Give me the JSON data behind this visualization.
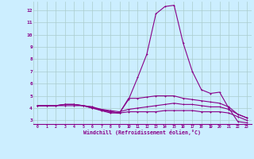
{
  "xlabel": "Windchill (Refroidissement éolien,°C)",
  "background_color": "#cceeff",
  "grid_color": "#aacccc",
  "line_color": "#880088",
  "xlim": [
    -0.5,
    23.5
  ],
  "ylim": [
    2.7,
    12.7
  ],
  "xtick_labels": [
    "0",
    "1",
    "2",
    "3",
    "4",
    "5",
    "6",
    "7",
    "8",
    "9",
    "10",
    "11",
    "12",
    "13",
    "14",
    "15",
    "16",
    "17",
    "18",
    "19",
    "20",
    "21",
    "22",
    "23"
  ],
  "ytick_labels": [
    "3",
    "4",
    "5",
    "6",
    "7",
    "8",
    "9",
    "10",
    "11",
    "12"
  ],
  "series": [
    {
      "x": [
        0,
        1,
        2,
        3,
        4,
        5,
        6,
        7,
        8,
        9,
        10,
        11,
        12,
        13,
        14,
        15,
        16,
        17,
        18,
        19,
        20,
        21,
        22,
        23
      ],
      "y": [
        4.2,
        4.2,
        4.2,
        4.2,
        4.2,
        4.2,
        4.1,
        3.9,
        3.7,
        3.6,
        4.7,
        6.5,
        8.4,
        11.7,
        12.3,
        12.4,
        9.3,
        7.0,
        5.5,
        5.2,
        5.3,
        4.0,
        2.9,
        2.8
      ]
    },
    {
      "x": [
        0,
        1,
        2,
        3,
        4,
        5,
        6,
        7,
        8,
        9,
        10,
        11,
        12,
        13,
        14,
        15,
        16,
        17,
        18,
        19,
        20,
        21,
        22,
        23
      ],
      "y": [
        4.2,
        4.2,
        4.2,
        4.3,
        4.3,
        4.2,
        4.0,
        3.8,
        3.7,
        3.6,
        4.8,
        4.8,
        4.9,
        5.0,
        5.0,
        5.0,
        4.8,
        4.7,
        4.6,
        4.5,
        4.4,
        4.1,
        3.5,
        3.2
      ]
    },
    {
      "x": [
        0,
        1,
        2,
        3,
        4,
        5,
        6,
        7,
        8,
        9,
        10,
        11,
        12,
        13,
        14,
        15,
        16,
        17,
        18,
        19,
        20,
        21,
        22,
        23
      ],
      "y": [
        4.2,
        4.2,
        4.2,
        4.3,
        4.3,
        4.2,
        4.0,
        3.9,
        3.8,
        3.7,
        3.9,
        4.0,
        4.1,
        4.2,
        4.3,
        4.4,
        4.3,
        4.3,
        4.2,
        4.1,
        4.1,
        3.9,
        3.5,
        3.2
      ]
    },
    {
      "x": [
        0,
        1,
        2,
        3,
        4,
        5,
        6,
        7,
        8,
        9,
        10,
        11,
        12,
        13,
        14,
        15,
        16,
        17,
        18,
        19,
        20,
        21,
        22,
        23
      ],
      "y": [
        4.2,
        4.2,
        4.2,
        4.3,
        4.3,
        4.2,
        4.1,
        3.8,
        3.6,
        3.6,
        3.7,
        3.7,
        3.7,
        3.7,
        3.8,
        3.8,
        3.8,
        3.8,
        3.7,
        3.7,
        3.7,
        3.6,
        3.3,
        3.0
      ]
    }
  ]
}
